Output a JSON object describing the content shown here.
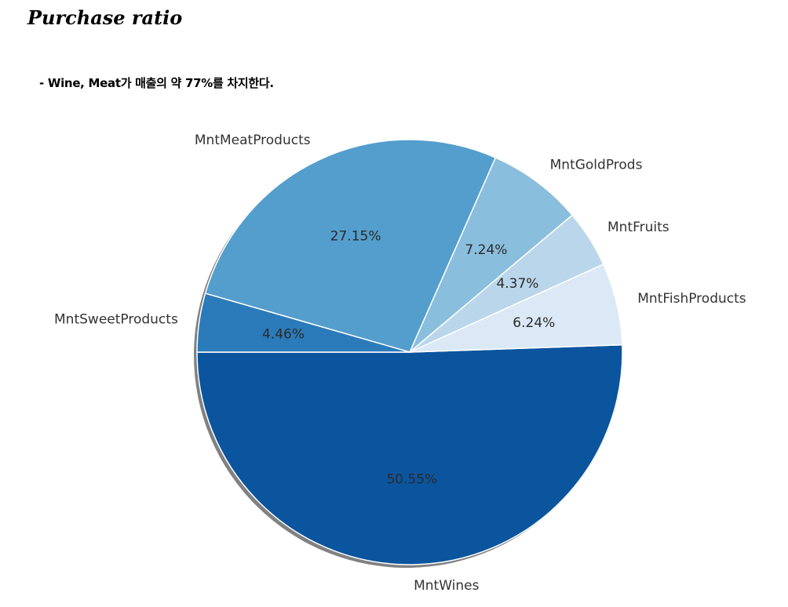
{
  "header": {
    "title": "Purchase ratio",
    "subtitle": "- Wine, Meat가 매출의 약 77%를 차지한다."
  },
  "chart_data": {
    "type": "pie",
    "title": "Purchase ratio",
    "categories": [
      "MntWines",
      "MntFishProducts",
      "MntFruits",
      "MntGoldProds",
      "MntMeatProducts",
      "MntSweetProducts"
    ],
    "values": [
      50.55,
      6.24,
      4.37,
      7.24,
      27.15,
      4.46
    ],
    "value_labels": [
      "50.55%",
      "6.24%",
      "4.37%",
      "7.24%",
      "27.15%",
      "4.46%"
    ],
    "colors": [
      "#0b559f",
      "#dbe9f6",
      "#bad6eb",
      "#89bedc",
      "#539ecd",
      "#2b7bba"
    ],
    "start_angle_deg": 180,
    "direction": "counterclockwise",
    "shadow": true,
    "legend": "none"
  }
}
